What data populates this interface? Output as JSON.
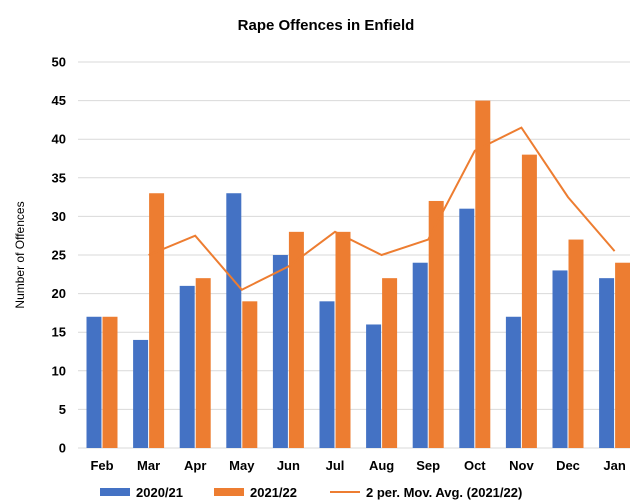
{
  "chart_data": {
    "type": "bar",
    "title": "Rape Offences in Enfield",
    "xlabel": "",
    "ylabel": "Number of Offences",
    "ylim": [
      0,
      50
    ],
    "yticks": [
      0,
      5,
      10,
      15,
      20,
      25,
      30,
      35,
      40,
      45,
      50
    ],
    "grid": true,
    "legend_position": "bottom",
    "categories": [
      "Feb",
      "Mar",
      "Apr",
      "May",
      "Jun",
      "Jul",
      "Aug",
      "Sep",
      "Oct",
      "Nov",
      "Dec",
      "Jan"
    ],
    "series": [
      {
        "name": "2020/21",
        "type": "bar",
        "color": "#4472C4",
        "values": [
          17,
          14,
          21,
          33,
          25,
          19,
          16,
          24,
          31,
          17,
          23,
          22
        ]
      },
      {
        "name": "2021/22",
        "type": "bar",
        "color": "#ED7D31",
        "values": [
          17,
          33,
          22,
          19,
          28,
          28,
          22,
          32,
          45,
          38,
          27,
          24
        ]
      },
      {
        "name": "2 per. Mov. Avg. (2021/22)",
        "type": "line",
        "color": "#ED7D31",
        "values": [
          null,
          25,
          27.5,
          20.5,
          23.5,
          28,
          25,
          27,
          38.5,
          41.5,
          32.5,
          25.5
        ]
      }
    ]
  }
}
